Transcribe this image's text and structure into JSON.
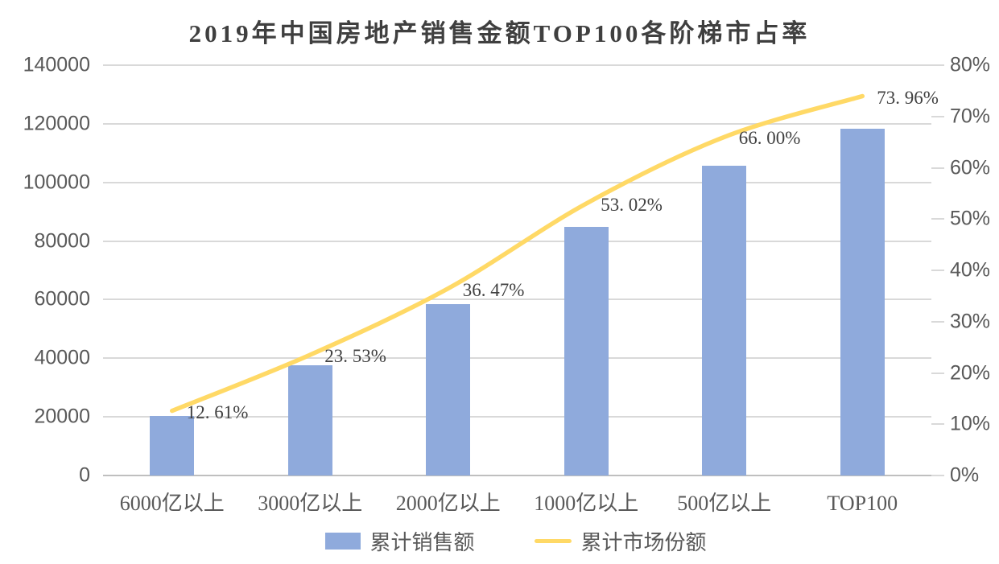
{
  "chart_data": {
    "type": "combo-bar-line",
    "title": "2019年中国房地产销售金额TOP100各阶梯市占率",
    "categories": [
      "6000亿以上",
      "3000亿以上",
      "2000亿以上",
      "1000亿以上",
      "500亿以上",
      "TOP100"
    ],
    "series": [
      {
        "name": "累计销售额",
        "type": "bar",
        "axis": "left",
        "color": "#8FAADC",
        "values": [
          20200,
          37600,
          58400,
          84800,
          105600,
          118300
        ]
      },
      {
        "name": "累计市场份额",
        "type": "line",
        "axis": "right",
        "color": "#FFD966",
        "values": [
          12.61,
          23.53,
          36.47,
          53.02,
          66.0,
          73.96
        ],
        "point_labels": [
          "12. 61%",
          "23. 53%",
          "36. 47%",
          "53. 02%",
          "66. 00%",
          "73. 96%"
        ]
      }
    ],
    "left_axis": {
      "min": 0,
      "max": 140000,
      "step": 20000,
      "tick_labels": [
        "140000",
        "120000",
        "100000",
        "80000",
        "60000",
        "40000",
        "20000",
        "0"
      ]
    },
    "right_axis": {
      "min": 0,
      "max": 80,
      "step": 10,
      "tick_labels": [
        "80%",
        "70%",
        "60%",
        "50%",
        "40%",
        "30%",
        "20%",
        "10%",
        "0%"
      ]
    },
    "grid": true,
    "legend_position": "bottom",
    "colors": {
      "background": "#FFFFFF",
      "title_text": "#3F3F3F",
      "axis_text": "#595959",
      "data_label_text": "#404040",
      "gridline": "#D9D9D9",
      "axis_line": "#BFBFBF"
    }
  }
}
